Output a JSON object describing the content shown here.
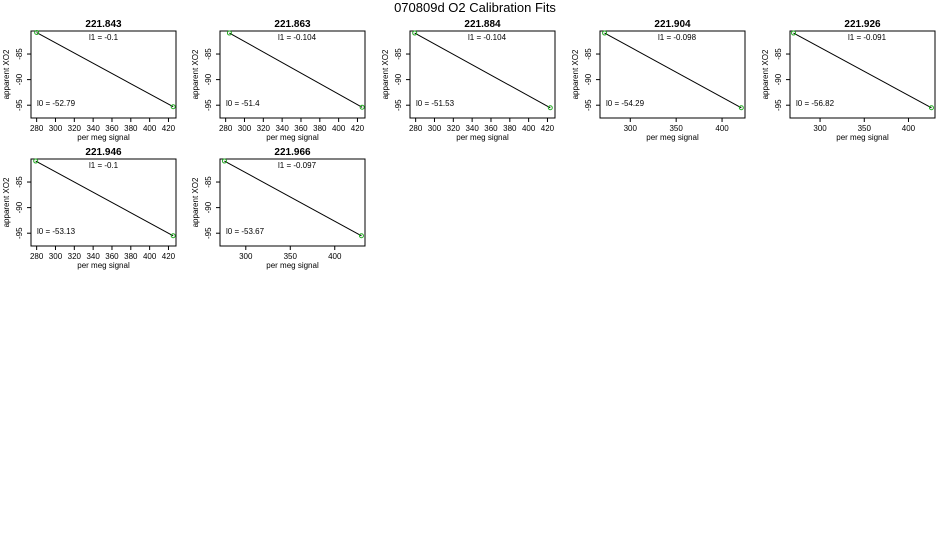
{
  "title": "070809d   O2 Calibration Fits",
  "colors": {
    "fit_line": "#000000",
    "points": "#22aa22",
    "frame": "#000000"
  },
  "chart_data": [
    {
      "type": "line",
      "title": "221.843",
      "xlabel": "per meg signal",
      "ylabel": "apparent XO2",
      "xticks": [
        280,
        300,
        320,
        340,
        360,
        380,
        400,
        420
      ],
      "yticks": [
        -85,
        -90,
        -95
      ],
      "xlim": [
        274,
        428
      ],
      "ylim": [
        -97.5,
        -80.5
      ],
      "points": [
        {
          "x": 280,
          "y": -80.8
        },
        {
          "x": 425,
          "y": -95.3
        }
      ],
      "annotations": {
        "l1": "l1 =  -0.1",
        "l0": "l0 =  -52.79"
      }
    },
    {
      "type": "line",
      "title": "221.863",
      "xlabel": "per meg signal",
      "ylabel": "apparent XO2",
      "xticks": [
        280,
        300,
        320,
        340,
        360,
        380,
        400,
        420
      ],
      "yticks": [
        -85,
        -90,
        -95
      ],
      "xlim": [
        274,
        428
      ],
      "ylim": [
        -97.5,
        -80.5
      ],
      "points": [
        {
          "x": 284,
          "y": -80.9
        },
        {
          "x": 425,
          "y": -95.4
        }
      ],
      "annotations": {
        "l1": "l1 =  -0.104",
        "l0": "l0 =  -51.4"
      }
    },
    {
      "type": "line",
      "title": "221.884",
      "xlabel": "per meg signal",
      "ylabel": "apparent XO2",
      "xticks": [
        280,
        300,
        320,
        340,
        360,
        380,
        400,
        420
      ],
      "yticks": [
        -85,
        -90,
        -95
      ],
      "xlim": [
        274,
        428
      ],
      "ylim": [
        -97.5,
        -80.5
      ],
      "points": [
        {
          "x": 279,
          "y": -80.9
        },
        {
          "x": 423,
          "y": -95.5
        }
      ],
      "annotations": {
        "l1": "l1 =  -0.104",
        "l0": "l0 =  -51.53"
      }
    },
    {
      "type": "line",
      "title": "221.904",
      "xlabel": "per meg signal",
      "ylabel": "apparent XO2",
      "xticks": [
        300,
        350,
        400
      ],
      "yticks": [
        -85,
        -90,
        -95
      ],
      "xlim": [
        267,
        425
      ],
      "ylim": [
        -97.5,
        -80.5
      ],
      "points": [
        {
          "x": 272,
          "y": -80.9
        },
        {
          "x": 421,
          "y": -95.5
        }
      ],
      "annotations": {
        "l1": "l1 =  -0.098",
        "l0": "l0 =  -54.29"
      }
    },
    {
      "type": "line",
      "title": "221.926",
      "xlabel": "per meg signal",
      "ylabel": "apparent XO2",
      "xticks": [
        300,
        350,
        400
      ],
      "yticks": [
        -85,
        -90,
        -95
      ],
      "xlim": [
        266,
        430
      ],
      "ylim": [
        -97.5,
        -80.5
      ],
      "points": [
        {
          "x": 270,
          "y": -80.9
        },
        {
          "x": 426,
          "y": -95.5
        }
      ],
      "annotations": {
        "l1": "l1 =  -0.091",
        "l0": "l0 =  -56.82"
      }
    },
    {
      "type": "line",
      "title": "221.946",
      "xlabel": "per meg signal",
      "ylabel": "apparent XO2",
      "xticks": [
        280,
        300,
        320,
        340,
        360,
        380,
        400,
        420
      ],
      "yticks": [
        -85,
        -90,
        -95
      ],
      "xlim": [
        274,
        428
      ],
      "ylim": [
        -97.5,
        -80.5
      ],
      "points": [
        {
          "x": 279,
          "y": -80.9
        },
        {
          "x": 425,
          "y": -95.5
        }
      ],
      "annotations": {
        "l1": "l1 =  -0.1",
        "l0": "l0 =  -53.13"
      }
    },
    {
      "type": "line",
      "title": "221.966",
      "xlabel": "per meg signal",
      "ylabel": "apparent XO2",
      "xticks": [
        300,
        350,
        400
      ],
      "yticks": [
        -85,
        -90,
        -95
      ],
      "xlim": [
        271,
        434
      ],
      "ylim": [
        -97.5,
        -80.5
      ],
      "points": [
        {
          "x": 276,
          "y": -80.9
        },
        {
          "x": 430,
          "y": -95.5
        }
      ],
      "annotations": {
        "l1": "l1 =  -0.097",
        "l0": "l0 =  -53.67"
      }
    }
  ]
}
